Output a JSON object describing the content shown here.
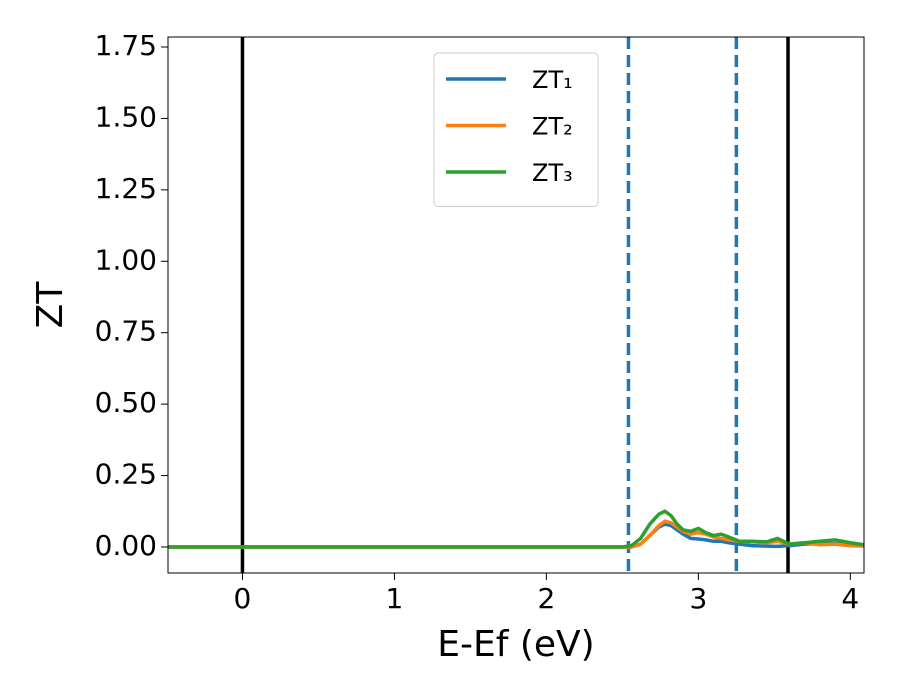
{
  "chart_data": {
    "type": "line",
    "x_label": "E-Ef (eV)",
    "y_label": "ZT",
    "x": [
      -0.49,
      0,
      1,
      2,
      2.5,
      2.56,
      2.62,
      2.68,
      2.74,
      2.78,
      2.82,
      2.86,
      2.9,
      2.95,
      3.0,
      3.05,
      3.1,
      3.15,
      3.2,
      3.27,
      3.35,
      3.45,
      3.52,
      3.6,
      3.7,
      3.8,
      3.9,
      4.0,
      4.09
    ],
    "series": [
      {
        "name": "ZT₁",
        "color": "#1f77b4",
        "values": [
          0,
          0,
          0,
          0,
          0,
          0,
          0.01,
          0.04,
          0.07,
          0.08,
          0.075,
          0.06,
          0.045,
          0.03,
          0.028,
          0.025,
          0.02,
          0.02,
          0.015,
          0.01,
          0.005,
          0.003,
          0.002,
          0.005,
          0.01,
          0.012,
          0.012,
          0.008,
          0.005
        ]
      },
      {
        "name": "ZT₂",
        "color": "#ff7f0e",
        "values": [
          0,
          0,
          0,
          0,
          0,
          0,
          0.01,
          0.04,
          0.075,
          0.09,
          0.085,
          0.07,
          0.055,
          0.045,
          0.05,
          0.045,
          0.035,
          0.03,
          0.025,
          0.02,
          0.018,
          0.015,
          0.02,
          0.01,
          0.015,
          0.008,
          0.01,
          0.005,
          0.003
        ]
      },
      {
        "name": "ZT₃",
        "color": "#2ca02c",
        "values": [
          0,
          0,
          0,
          0,
          0,
          0.005,
          0.03,
          0.08,
          0.115,
          0.125,
          0.11,
          0.08,
          0.06,
          0.055,
          0.065,
          0.05,
          0.04,
          0.045,
          0.035,
          0.02,
          0.02,
          0.018,
          0.03,
          0.01,
          0.015,
          0.02,
          0.025,
          0.015,
          0.008
        ]
      }
    ],
    "vlines": [
      {
        "x": 0,
        "color": "#000000",
        "style": "solid"
      },
      {
        "x": 2.54,
        "color": "#1f77b4",
        "style": "dashed"
      },
      {
        "x": 3.25,
        "color": "#1f77b4",
        "style": "dashed"
      },
      {
        "x": 3.59,
        "color": "#000000",
        "style": "solid"
      }
    ],
    "xlim": [
      -0.49,
      4.09
    ],
    "ylim": [
      -0.091,
      1.785
    ],
    "xticks": [
      0,
      1,
      2,
      3,
      4
    ],
    "yticks": [
      {
        "value": 0,
        "label": "0.00"
      },
      {
        "value": 0.25,
        "label": "0.25"
      },
      {
        "value": 0.5,
        "label": "0.50"
      },
      {
        "value": 0.75,
        "label": "0.75"
      },
      {
        "value": 1.0,
        "label": "1.00"
      },
      {
        "value": 1.25,
        "label": "1.25"
      },
      {
        "value": 1.5,
        "label": "1.50"
      },
      {
        "value": 1.75,
        "label": "1.75"
      }
    ],
    "grid": false,
    "legend": "upper center"
  }
}
